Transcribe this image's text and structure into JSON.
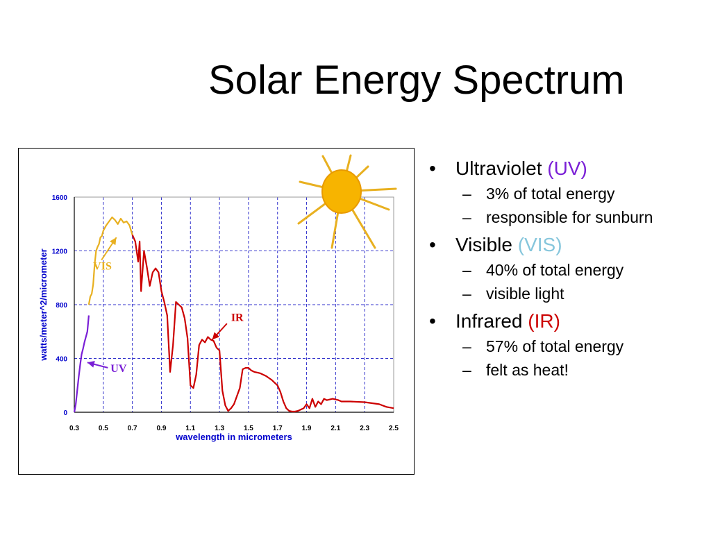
{
  "slide": {
    "title": "Solar Energy Spectrum"
  },
  "bullets": [
    {
      "label": "Ultraviolet",
      "tag": "(UV)",
      "tag_color": "#7a1fd6",
      "sub": [
        "3% of total energy",
        "responsible for sunburn"
      ]
    },
    {
      "label": "Visible",
      "tag": "(VIS)",
      "tag_color": "#86c6dc",
      "sub": [
        "40% of total energy",
        "visible light"
      ]
    },
    {
      "label": "Infrared",
      "tag": "(IR)",
      "tag_color": "#cc0000",
      "sub": [
        "57% of total energy",
        "felt as heat!"
      ]
    }
  ],
  "bullet_glyph": "•",
  "dash_glyph": "–",
  "chart_data": {
    "type": "line",
    "title": "",
    "xlabel": "wavelength in micrometers",
    "ylabel": "watts/meter^2/micrometer",
    "xlim": [
      0.3,
      2.5
    ],
    "ylim": [
      0,
      1600
    ],
    "xticks": [
      "0.3",
      "0.5",
      "0.7",
      "0.9",
      "1.1",
      "1.3",
      "1.5",
      "1.7",
      "1.9",
      "2.1",
      "2.3",
      "2.5"
    ],
    "yticks": [
      "0",
      "400",
      "800",
      "1200",
      "1600"
    ],
    "grid": true,
    "axis_text_color": "#0000cc",
    "series": [
      {
        "name": "UV",
        "color": "#7a1fd6",
        "x": [
          0.3,
          0.31,
          0.32,
          0.33,
          0.34,
          0.35,
          0.36,
          0.37,
          0.38,
          0.39,
          0.4
        ],
        "y": [
          0,
          60,
          160,
          260,
          350,
          430,
          470,
          520,
          560,
          600,
          720
        ]
      },
      {
        "name": "VIS",
        "color": "#e8b020",
        "x": [
          0.4,
          0.41,
          0.42,
          0.43,
          0.44,
          0.45,
          0.46,
          0.47,
          0.48,
          0.49,
          0.5,
          0.52,
          0.54,
          0.56,
          0.58,
          0.6,
          0.62,
          0.64,
          0.66,
          0.68,
          0.7
        ],
        "y": [
          800,
          860,
          880,
          950,
          1100,
          1200,
          1230,
          1250,
          1300,
          1310,
          1350,
          1390,
          1420,
          1450,
          1430,
          1400,
          1440,
          1410,
          1420,
          1390,
          1320
        ]
      },
      {
        "name": "IR",
        "color": "#cc0000",
        "x": [
          0.7,
          0.72,
          0.74,
          0.75,
          0.76,
          0.78,
          0.8,
          0.82,
          0.84,
          0.86,
          0.88,
          0.9,
          0.92,
          0.94,
          0.96,
          0.98,
          1.0,
          1.02,
          1.04,
          1.06,
          1.08,
          1.1,
          1.12,
          1.14,
          1.16,
          1.18,
          1.2,
          1.22,
          1.24,
          1.26,
          1.28,
          1.3,
          1.32,
          1.34,
          1.36,
          1.38,
          1.4,
          1.42,
          1.44,
          1.46,
          1.48,
          1.5,
          1.52,
          1.54,
          1.56,
          1.58,
          1.6,
          1.62,
          1.64,
          1.66,
          1.68,
          1.7,
          1.72,
          1.74,
          1.76,
          1.78,
          1.8,
          1.82,
          1.84,
          1.86,
          1.88,
          1.9,
          1.92,
          1.94,
          1.96,
          1.98,
          2.0,
          2.02,
          2.04,
          2.06,
          2.08,
          2.1,
          2.12,
          2.14,
          2.16,
          2.2,
          2.3,
          2.4,
          2.45,
          2.5
        ],
        "y": [
          1320,
          1270,
          1120,
          1270,
          900,
          1200,
          1080,
          940,
          1040,
          1070,
          1040,
          900,
          820,
          720,
          300,
          500,
          820,
          800,
          780,
          700,
          550,
          200,
          180,
          280,
          500,
          540,
          520,
          560,
          540,
          530,
          480,
          460,
          160,
          50,
          10,
          30,
          60,
          120,
          180,
          320,
          330,
          330,
          310,
          300,
          295,
          290,
          280,
          270,
          255,
          240,
          220,
          200,
          150,
          80,
          30,
          10,
          5,
          5,
          10,
          20,
          30,
          60,
          30,
          100,
          40,
          80,
          60,
          100,
          90,
          95,
          100,
          95,
          90,
          80,
          80,
          80,
          75,
          60,
          40,
          30
        ]
      }
    ],
    "annotations": [
      {
        "text": "VIS",
        "color": "#e8b020",
        "at": [
          0.43,
          1060
        ],
        "arrow_to": [
          0.59,
          1300
        ]
      },
      {
        "text": "IR",
        "color": "#cc0000",
        "at": [
          1.38,
          680
        ],
        "arrow_to": [
          1.25,
          540
        ]
      },
      {
        "text": "UV",
        "color": "#7a1fd6",
        "at": [
          0.55,
          300
        ],
        "arrow_to": [
          0.39,
          370
        ]
      }
    ]
  }
}
